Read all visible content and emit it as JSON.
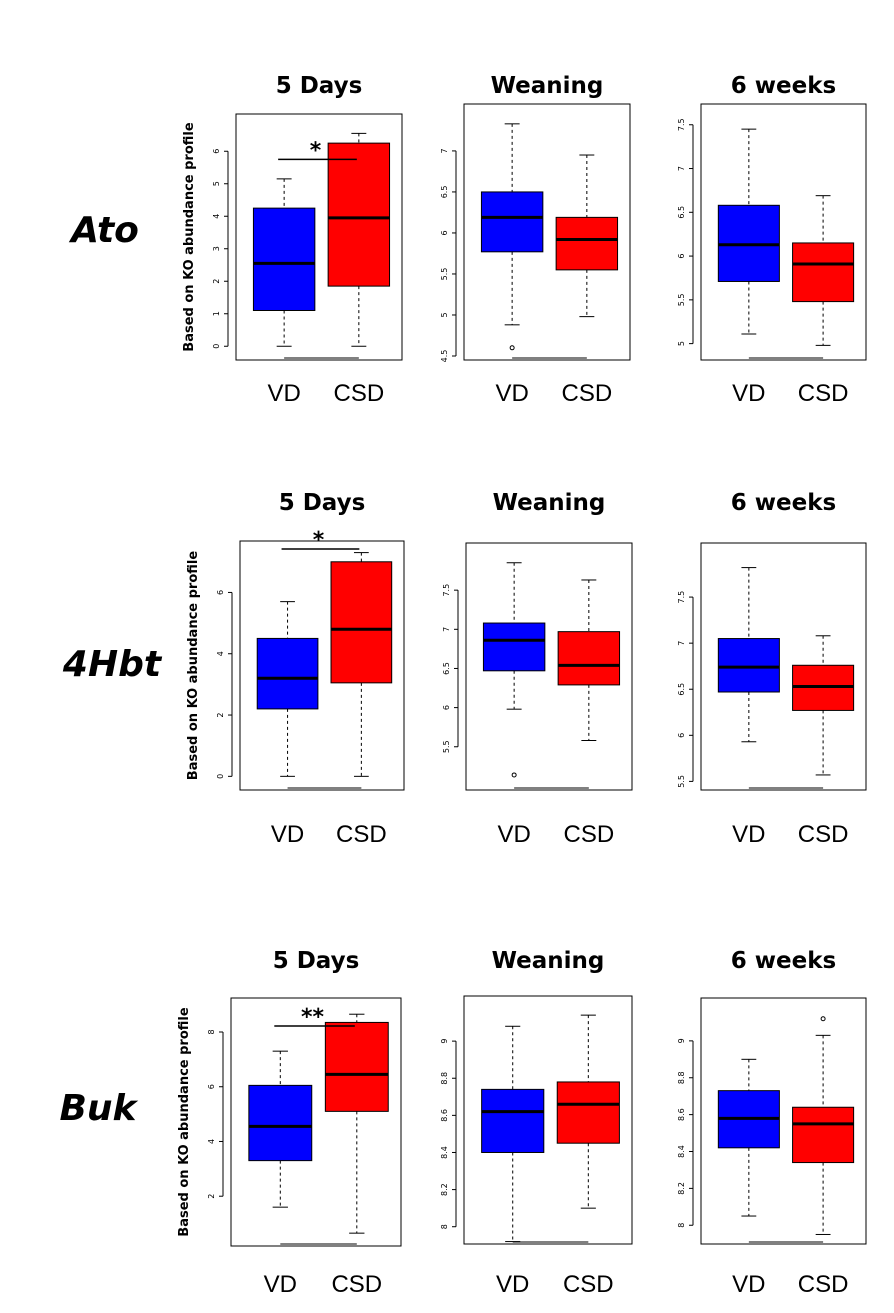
{
  "figure": {
    "ylabel": "Based on KO abundance profile",
    "rows": [
      "Ato",
      "4Hbt",
      "Buk"
    ],
    "panel_titles": [
      "5 Days",
      "Weaning",
      "6 weeks"
    ],
    "groups": [
      "VD",
      "CSD"
    ]
  },
  "colors": {
    "VD": "#0000ff",
    "CSD": "#ff0000"
  },
  "chart_data": [
    {
      "type": "box",
      "row": "Ato",
      "title": "5 Days",
      "ylabel": "Based on KO abundance profile",
      "ylim": [
        -0.3,
        6.9
      ],
      "yticks": [
        0,
        1,
        2,
        3,
        4,
        5,
        6
      ],
      "significance": "*",
      "boxes": [
        {
          "group": "VD",
          "min": 0,
          "q1": 1.1,
          "median": 2.55,
          "q3": 4.25,
          "max": 5.15,
          "outliers": []
        },
        {
          "group": "CSD",
          "min": 0,
          "q1": 1.85,
          "median": 3.95,
          "q3": 6.25,
          "max": 6.55,
          "outliers": []
        }
      ]
    },
    {
      "type": "box",
      "row": "Ato",
      "title": "Weaning",
      "ylabel": "",
      "ylim": [
        4.5,
        7.45
      ],
      "yticks": [
        4.5,
        5.0,
        5.5,
        6.0,
        6.5,
        7.0
      ],
      "significance": "",
      "boxes": [
        {
          "group": "VD",
          "min": 4.88,
          "q1": 5.77,
          "median": 6.19,
          "q3": 6.5,
          "max": 7.33,
          "outliers": [
            4.6
          ]
        },
        {
          "group": "CSD",
          "min": 4.98,
          "q1": 5.55,
          "median": 5.92,
          "q3": 6.19,
          "max": 6.95,
          "outliers": []
        }
      ]
    },
    {
      "type": "box",
      "row": "Ato",
      "title": "6 weeks",
      "ylabel": "",
      "ylim": [
        4.95,
        7.6
      ],
      "yticks": [
        5.0,
        5.5,
        6.0,
        6.5,
        7.0,
        7.5
      ],
      "significance": "",
      "boxes": [
        {
          "group": "VD",
          "min": 5.11,
          "q1": 5.71,
          "median": 6.13,
          "q3": 6.58,
          "max": 7.45,
          "outliers": []
        },
        {
          "group": "CSD",
          "min": 4.98,
          "q1": 5.48,
          "median": 5.91,
          "q3": 6.15,
          "max": 6.69,
          "outliers": []
        }
      ]
    },
    {
      "type": "box",
      "row": "4Hbt",
      "title": "5 Days",
      "ylabel": "Based on KO abundance profile",
      "ylim": [
        -0.25,
        7.45
      ],
      "yticks": [
        0,
        2,
        4,
        6
      ],
      "significance": "*",
      "boxes": [
        {
          "group": "VD",
          "min": 0,
          "q1": 2.2,
          "median": 3.2,
          "q3": 4.5,
          "max": 5.7,
          "outliers": []
        },
        {
          "group": "CSD",
          "min": 0,
          "q1": 3.05,
          "median": 4.8,
          "q3": 7.0,
          "max": 7.3,
          "outliers": []
        }
      ]
    },
    {
      "type": "box",
      "row": "4Hbt",
      "title": "Weaning",
      "ylabel": "",
      "ylim": [
        5.05,
        8.0
      ],
      "yticks": [
        5.5,
        6.0,
        6.5,
        7.0,
        7.5
      ],
      "significance": "",
      "boxes": [
        {
          "group": "VD",
          "min": 5.98,
          "q1": 6.47,
          "median": 6.86,
          "q3": 7.08,
          "max": 7.85,
          "outliers": [
            5.14
          ]
        },
        {
          "group": "CSD",
          "min": 5.58,
          "q1": 6.29,
          "median": 6.54,
          "q3": 6.97,
          "max": 7.63,
          "outliers": []
        }
      ]
    },
    {
      "type": "box",
      "row": "4Hbt",
      "title": "6 weeks",
      "ylabel": "",
      "ylim": [
        5.45,
        8.0
      ],
      "yticks": [
        5.5,
        6.0,
        6.5,
        7.0,
        7.5
      ],
      "significance": "",
      "boxes": [
        {
          "group": "VD",
          "min": 5.93,
          "q1": 6.47,
          "median": 6.74,
          "q3": 7.05,
          "max": 7.82,
          "outliers": []
        },
        {
          "group": "CSD",
          "min": 5.57,
          "q1": 6.27,
          "median": 6.53,
          "q3": 6.76,
          "max": 7.08,
          "outliers": []
        }
      ]
    },
    {
      "type": "box",
      "row": "Buk",
      "title": "5 Days",
      "ylabel": "Based on KO abundance profile",
      "ylim": [
        0.4,
        8.95
      ],
      "yticks": [
        2,
        4,
        6,
        8
      ],
      "significance": "**",
      "boxes": [
        {
          "group": "VD",
          "min": 1.6,
          "q1": 3.3,
          "median": 4.55,
          "q3": 6.05,
          "max": 7.3,
          "outliers": []
        },
        {
          "group": "CSD",
          "min": 0.65,
          "q1": 5.1,
          "median": 6.45,
          "q3": 8.35,
          "max": 8.65,
          "outliers": []
        }
      ]
    },
    {
      "type": "box",
      "row": "Buk",
      "title": "Weaning",
      "ylabel": "",
      "ylim": [
        7.95,
        9.2
      ],
      "yticks": [
        8.0,
        8.2,
        8.4,
        8.6,
        8.8,
        9.0
      ],
      "significance": "",
      "boxes": [
        {
          "group": "VD",
          "min": 7.92,
          "q1": 8.4,
          "median": 8.62,
          "q3": 8.74,
          "max": 9.08,
          "outliers": []
        },
        {
          "group": "CSD",
          "min": 8.1,
          "q1": 8.45,
          "median": 8.66,
          "q3": 8.78,
          "max": 9.14,
          "outliers": []
        }
      ]
    },
    {
      "type": "box",
      "row": "Buk",
      "title": "6 weeks",
      "ylabel": "",
      "ylim": [
        7.92,
        9.2
      ],
      "yticks": [
        8.0,
        8.2,
        8.4,
        8.6,
        8.8,
        9.0
      ],
      "significance": "",
      "boxes": [
        {
          "group": "VD",
          "min": 8.05,
          "q1": 8.42,
          "median": 8.58,
          "q3": 8.73,
          "max": 8.9,
          "outliers": []
        },
        {
          "group": "CSD",
          "min": 7.95,
          "q1": 8.34,
          "median": 8.55,
          "q3": 8.64,
          "max": 9.03,
          "outliers": [
            9.12
          ]
        }
      ]
    }
  ]
}
